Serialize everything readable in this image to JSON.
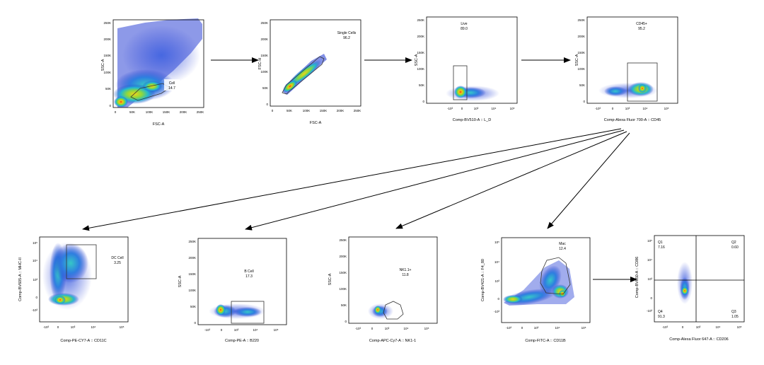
{
  "panels": {
    "p1": {
      "xlabel": "FSC-A",
      "ylabel": "SSC-A",
      "yticks": [
        "250K",
        "200K",
        "150K",
        "100K",
        "50K",
        "0"
      ],
      "xticks": [
        "0",
        "50K",
        "100K",
        "150K",
        "200K",
        "250K"
      ],
      "gate": {
        "name": "Cell",
        "value": "14.7"
      }
    },
    "p2": {
      "xlabel": "FSC-A",
      "ylabel": "FSC-H",
      "yticks": [
        "250K",
        "200K",
        "150K",
        "100K",
        "50K",
        "0"
      ],
      "xticks": [
        "0",
        "50K",
        "100K",
        "150K",
        "200K",
        "250K"
      ],
      "gate": {
        "name": "Single Cells",
        "value": "96.2"
      }
    },
    "p3": {
      "xlabel": "Comp-BV510-A :: L_D",
      "ylabel": "SSC-A",
      "yticks": [
        "250K",
        "200K",
        "150K",
        "100K",
        "50K",
        "0"
      ],
      "xticks": [
        "-10³",
        "0",
        "10³",
        "10⁴",
        "10⁵"
      ],
      "gate": {
        "name": "Live",
        "value": "89.0"
      }
    },
    "p4": {
      "xlabel": "Comp-Alexa Fluor 700-A :: CD45",
      "ylabel": "SSC-A",
      "yticks": [
        "250K",
        "200K",
        "150K",
        "100K",
        "50K",
        "0"
      ],
      "xticks": [
        "-10³",
        "0",
        "10³",
        "10⁴",
        "10⁵"
      ],
      "gate": {
        "name": "CD45+",
        "value": "95.2"
      }
    },
    "p5": {
      "xlabel": "Comp-PE-CY7-A :: CD11C",
      "ylabel": "Comp-BV605-A :: MHC-II",
      "yticks": [
        "10⁵",
        "10⁴",
        "10³",
        "0",
        "-10³"
      ],
      "xticks": [
        "-10³",
        "0",
        "10³",
        "10⁴",
        "10⁵"
      ],
      "gate": {
        "name": "DC Cell",
        "value": "3.25"
      }
    },
    "p6": {
      "xlabel": "Comp-PE-A :: B220",
      "ylabel": "SSC-A",
      "yticks": [
        "250K",
        "200K",
        "150K",
        "100K",
        "50K",
        "0"
      ],
      "xticks": [
        "-10³",
        "0",
        "10³",
        "10⁴",
        "10⁵"
      ],
      "gate": {
        "name": "B Cell",
        "value": "17.3"
      }
    },
    "p7": {
      "xlabel": "Comp-APC-Cy7-A :: NK1-1",
      "ylabel": "SSC-A",
      "yticks": [
        "250K",
        "200K",
        "150K",
        "100K",
        "50K",
        "0"
      ],
      "xticks": [
        "-10³",
        "0",
        "10³",
        "10⁴",
        "10⁵"
      ],
      "gate": {
        "name": "NK1.1+",
        "value": "11.8"
      }
    },
    "p8": {
      "xlabel": "Comp-FITC-A :: CD11B",
      "ylabel": "Comp-BV421-A :: F4_80",
      "yticks": [
        "10⁵",
        "10⁴",
        "10³",
        "0",
        "-10³"
      ],
      "xticks": [
        "-10³",
        "0",
        "10³",
        "10⁴",
        "10⁵"
      ],
      "gate": {
        "name": "Mac",
        "value": "12.4"
      }
    },
    "p9": {
      "xlabel": "Comp-Alexa Fluor 647-A :: CD206",
      "ylabel": "Comp-BV650-A :: CD86",
      "yticks": [
        "10⁵",
        "10⁴",
        "10³",
        "0",
        "-10³"
      ],
      "xticks": [
        "-10³",
        "0",
        "10³",
        "10⁴",
        "10⁵"
      ],
      "quadrants": {
        "q1": {
          "name": "Q1",
          "value": "7.16"
        },
        "q2": {
          "name": "Q2",
          "value": "0.60"
        },
        "q3": {
          "name": "Q3",
          "value": "1.05"
        },
        "q4": {
          "name": "Q4",
          "value": "91.3"
        }
      }
    }
  }
}
